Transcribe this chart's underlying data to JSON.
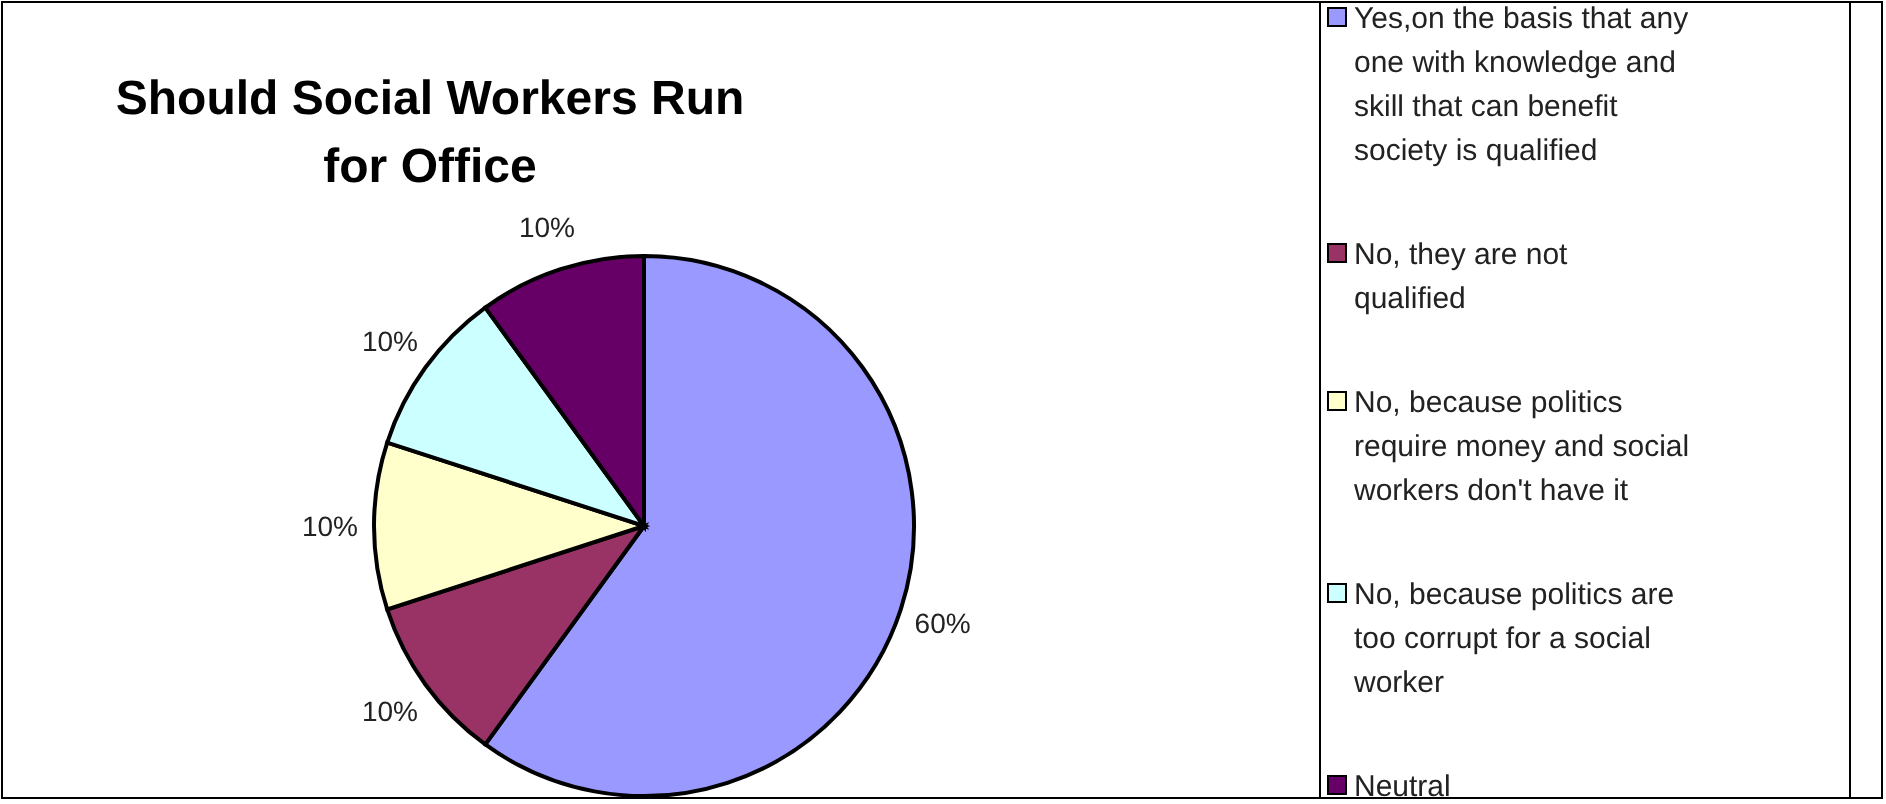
{
  "chart_data": {
    "type": "pie",
    "title": "Should Social Workers Run for Office",
    "categories": [
      "Yes,on the basis that any one with knowledge and skill that can benefit society is qualified",
      "No, they are not qualified",
      "No, because politics require money and social workers don't have it",
      "No, because politics are too corrupt for a social worker",
      "Neutral"
    ],
    "values": [
      60,
      10,
      10,
      10,
      10
    ],
    "colors": [
      "#9999ff",
      "#993366",
      "#ffffcc",
      "#ccffff",
      "#660066"
    ],
    "value_labels": [
      "60%",
      "10%",
      "10%",
      "10%",
      "10%"
    ],
    "legend": "right"
  }
}
